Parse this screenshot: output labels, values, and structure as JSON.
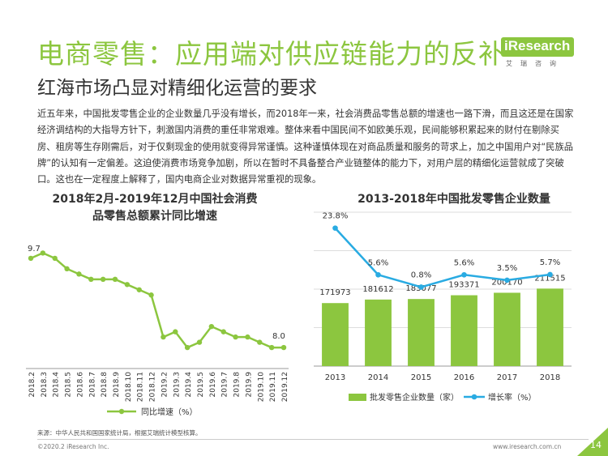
{
  "title": "电商零售：应用端对供应链能力的反补",
  "subtitle": "红海市场凸显对精细化运营的要求",
  "logo": {
    "brand": "iResearch",
    "sub": "艾瑞咨询"
  },
  "paragraph": "近五年来，中国批发零售企业的企业数量几乎没有增长，而2018年一来，社会消费品零售总额的增速也一路下滑，而且这还是在国家经济调结构的大指导方针下，刺激国内消费的重任非常艰难。整体来看中国民间不如欧美乐观，民间能够积累起来的财付在剔除买房、租房等生存刚需后，对于仅剩现金的使用就变得异常谨慎。这种谨慎体现在对商品质量和服务的苛求上，加之中国用户对“民族品牌”的认知有一定偏差。这迫使消费市场竞争加剧，所以在暂时不具备整合产业链整体的能力下，对用户层的精细化运营就成了突破口。这也在一定程度上解释了，国内电商企业对数据异常重视的现象。",
  "colors": {
    "green": "#8cc63f",
    "blue": "#29abe2",
    "grid": "#dddddd"
  },
  "chart_data": [
    {
      "type": "line",
      "title": "2018年2月-2019年12月中国社会消费品零售总额累计同比增速",
      "x": [
        "2018.2",
        "2018.3",
        "2018.4",
        "2018.5",
        "2018.6",
        "2018.7",
        "2018.8",
        "2018.9",
        "2018.10",
        "2018.11",
        "2018.12",
        "2019.2",
        "2019.3",
        "2019.4",
        "2019.5",
        "2019.6",
        "2019.7",
        "2019.8",
        "2019.9",
        "2019.10",
        "2019.11",
        "2019.12"
      ],
      "series": [
        {
          "name": "同比增速（%）",
          "values": [
            9.7,
            9.8,
            9.7,
            9.5,
            9.4,
            9.3,
            9.3,
            9.3,
            9.2,
            9.1,
            9.0,
            8.2,
            8.3,
            8.0,
            8.1,
            8.4,
            8.3,
            8.2,
            8.2,
            8.1,
            8.0,
            8.0
          ]
        }
      ],
      "point_labels": {
        "first": "9.7",
        "last": "8.0"
      },
      "ylim": [
        7.6,
        10.3
      ],
      "grid": false,
      "legend": "bottom"
    },
    {
      "type": "bar",
      "title": "2013-2018年中国批发零售企业数量",
      "categories": [
        "2013",
        "2014",
        "2015",
        "2016",
        "2017",
        "2018"
      ],
      "series": [
        {
          "name": "批发零售企业数量（家）",
          "type": "bar",
          "values": [
            171973,
            181612,
            183077,
            193371,
            200170,
            211515
          ],
          "labels": [
            "171973",
            "181612",
            "183077",
            "193371",
            "200170",
            "211515"
          ]
        },
        {
          "name": "增长率（%）",
          "type": "line",
          "values": [
            23.8,
            5.6,
            0.8,
            5.6,
            3.5,
            5.7
          ],
          "labels": [
            "23.8%",
            "5.6%",
            "0.8%",
            "5.6%",
            "3.5%",
            "5.7%"
          ]
        }
      ],
      "bar_ylim": [
        0,
        420000
      ],
      "line_ylim": [
        -30,
        30
      ],
      "grid": true,
      "legend": "bottom"
    }
  ],
  "footer": {
    "source": "来源：中华人民共和国国家统计局，根据艾瑞统计模型核算。",
    "copyright": "©2020.2 iResearch Inc.",
    "url": "www.iresearch.com.cn",
    "page": "14"
  }
}
